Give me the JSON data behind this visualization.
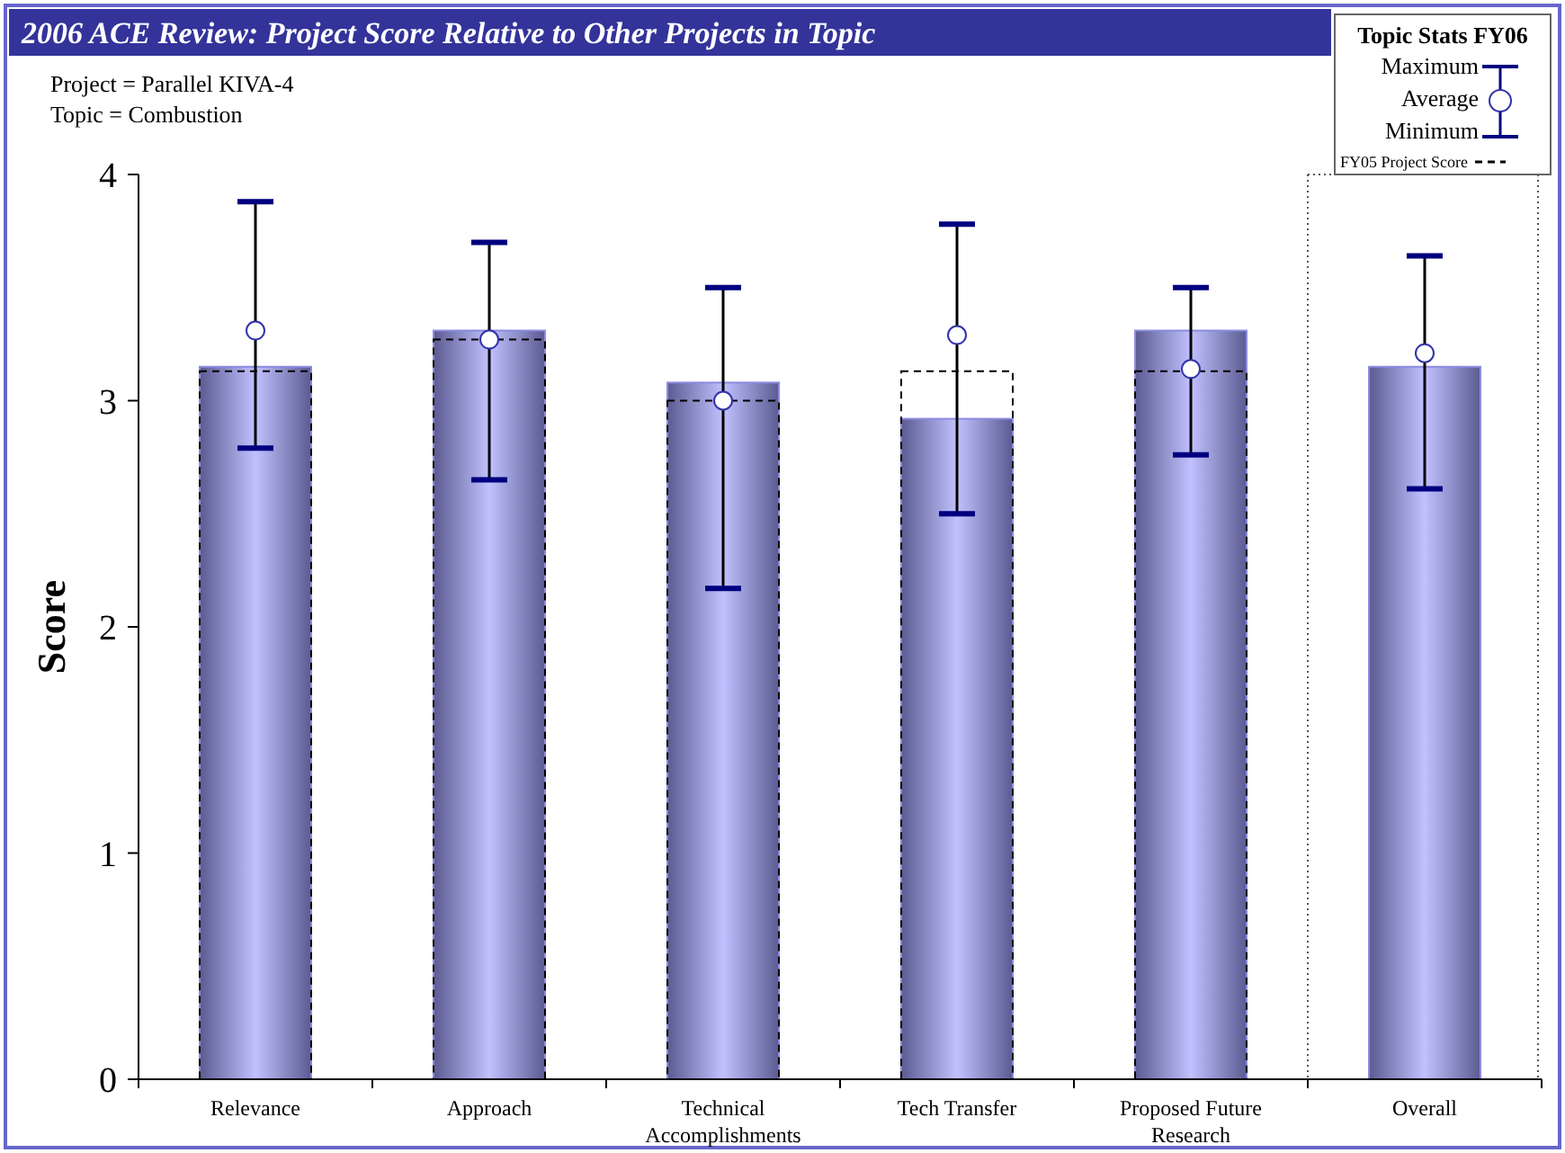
{
  "chart_data": {
    "type": "bar",
    "title": "2006 ACE Review: Project Score Relative to Other Projects in Topic",
    "categories": [
      "Relevance",
      "Approach",
      "Technical Accomplishments",
      "Tech Transfer",
      "Proposed Future Research",
      "Overall"
    ],
    "series": [
      {
        "color": "#8c8ce0",
        "values": [
          3.15,
          3.31,
          3.08,
          2.92,
          3.31,
          3.15
        ]
      },
      {
        "type": "bar",
        "name": "FY05 Project Score",
        "color": "#000000",
        "line_style": "dashed",
        "values": [
          3.13,
          3.27,
          3.0,
          3.13,
          3.13,
          null
        ]
      },
      {
        "type": "scatter",
        "name": "Average",
        "color": "#ffffff",
        "marker": "circle",
        "values": [
          3.31,
          3.27,
          3.0,
          3.29,
          3.14,
          3.21
        ],
        "errors": [
          [
            2.79,
            3.88
          ],
          [
            2.65,
            3.7
          ],
          [
            2.17,
            3.5
          ],
          [
            2.5,
            3.78
          ],
          [
            2.76,
            3.5
          ],
          [
            2.61,
            3.64
          ]
        ]
      }
    ],
    "ylabel": "Score",
    "ylim": [
      0,
      4
    ],
    "yticks": [
      0,
      1,
      2,
      3,
      4
    ],
    "grid": false,
    "legend": "top right",
    "legend_title": "Topic Stats FY06",
    "annotations": [
      "Project = Parallel KIVA-4",
      "Topic = Combustion",
      "Maximum",
      "Minimum"
    ]
  }
}
